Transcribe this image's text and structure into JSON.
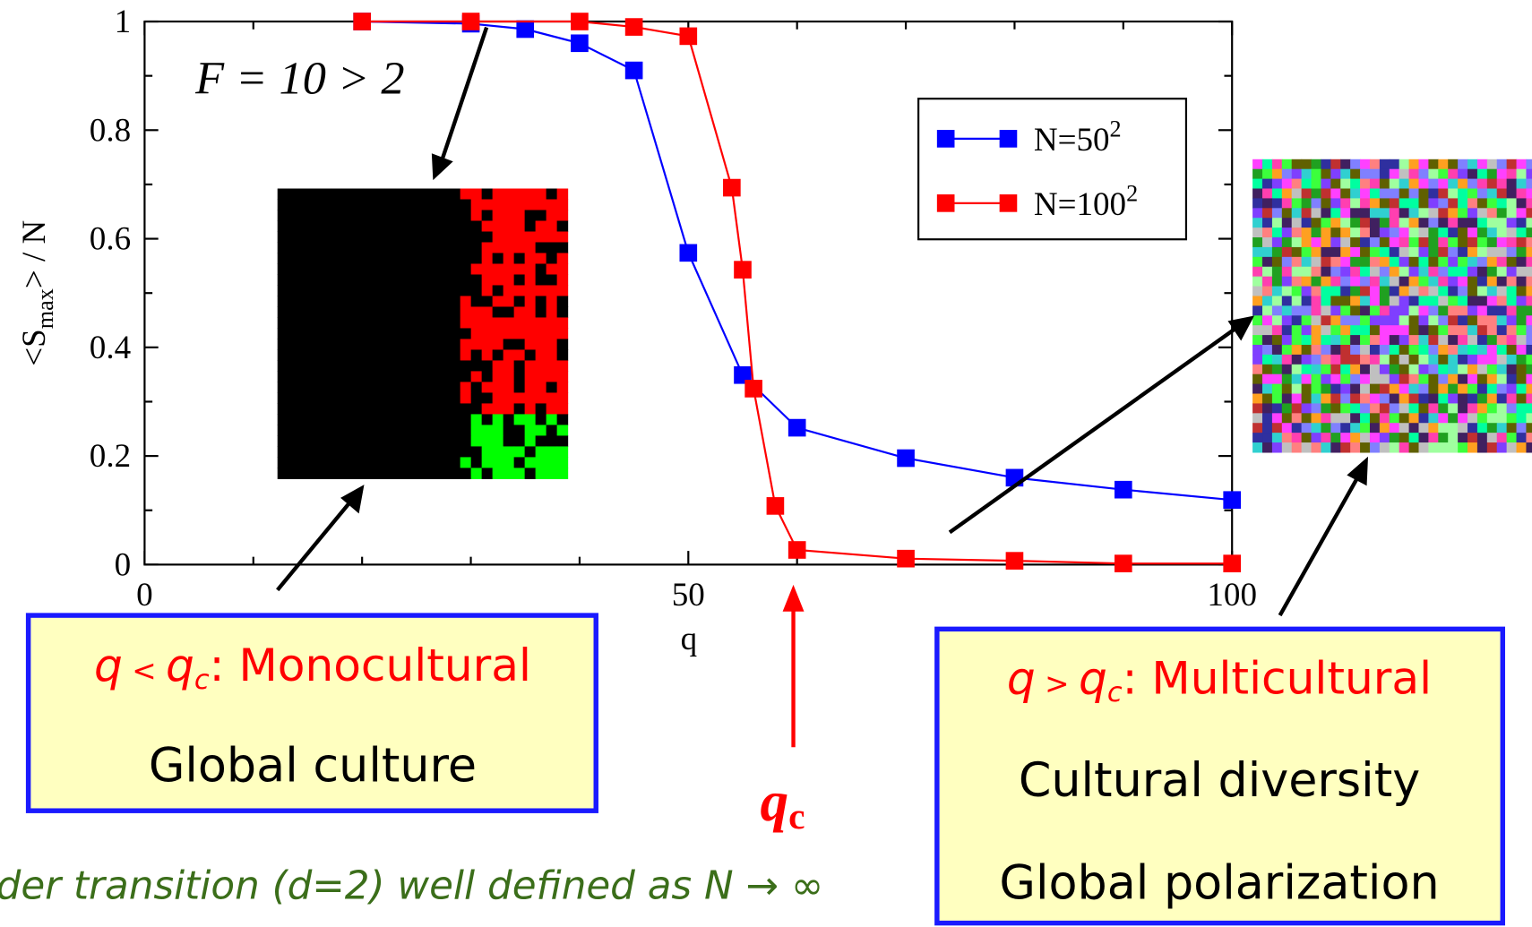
{
  "chart_data": {
    "type": "line",
    "ylabel_parts": [
      "<S",
      "max",
      "> / N"
    ],
    "xlabel": "q",
    "xlim": [
      0,
      100
    ],
    "ylim": [
      0,
      1
    ],
    "xticks": [
      0,
      50,
      100
    ],
    "yticks": [
      0,
      0.2,
      0.4,
      0.6,
      0.8,
      1
    ],
    "x_minor_ticks": [
      10,
      20,
      30,
      40,
      60,
      70,
      80,
      90
    ],
    "y_minor_ticks": [
      0.1,
      0.3,
      0.5,
      0.7,
      0.9
    ],
    "legend": "upper right",
    "series": [
      {
        "name": "N=50",
        "name_sup": "2",
        "color": "#0000ff",
        "x": [
          20,
          30,
          35,
          40,
          45,
          50,
          55,
          60,
          70,
          80,
          90,
          100
        ],
        "values": [
          1.0,
          0.996,
          0.986,
          0.96,
          0.91,
          0.574,
          0.349,
          0.252,
          0.196,
          0.16,
          0.138,
          0.119
        ]
      },
      {
        "name": "N=100",
        "name_sup": "2",
        "color": "#ff0000",
        "x": [
          20,
          30,
          40,
          45,
          50,
          54,
          55,
          56,
          58,
          60,
          70,
          80,
          90,
          100
        ],
        "values": [
          1.0,
          1.0,
          1.0,
          0.99,
          0.973,
          0.694,
          0.543,
          0.324,
          0.108,
          0.027,
          0.011,
          0.007,
          0.002,
          0.002
        ]
      }
    ],
    "annotation_f": "F = 10 > 2",
    "qc_parts": [
      "q",
      "c"
    ]
  },
  "left_box": {
    "heading_parts": [
      "q",
      " < ",
      "q",
      "c",
      ": Monocultural"
    ],
    "lines": [
      "Global culture"
    ]
  },
  "right_box": {
    "heading_parts": [
      "q",
      " > ",
      "q",
      "c",
      ": Multicultural"
    ],
    "lines": [
      "Cultural diversity",
      "Global polarization"
    ]
  },
  "footer": "der transition (d=2) well defined as N → ∞"
}
